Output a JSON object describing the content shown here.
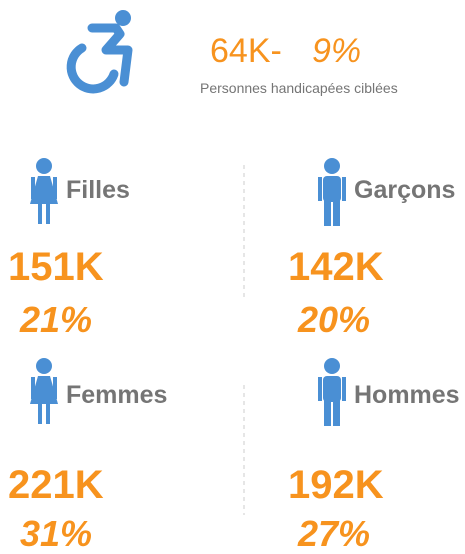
{
  "header": {
    "value": "64K-",
    "percent": "9%",
    "caption": "Personnes handicapées ciblées"
  },
  "groups": [
    {
      "label": "Filles",
      "value": "151K",
      "percent": "21%"
    },
    {
      "label": "Garçons",
      "value": "142K",
      "percent": "20%"
    },
    {
      "label": "Femmes",
      "value": "221K",
      "percent": "31%"
    },
    {
      "label": "Hommes",
      "value": "192K",
      "percent": "27%"
    }
  ]
}
